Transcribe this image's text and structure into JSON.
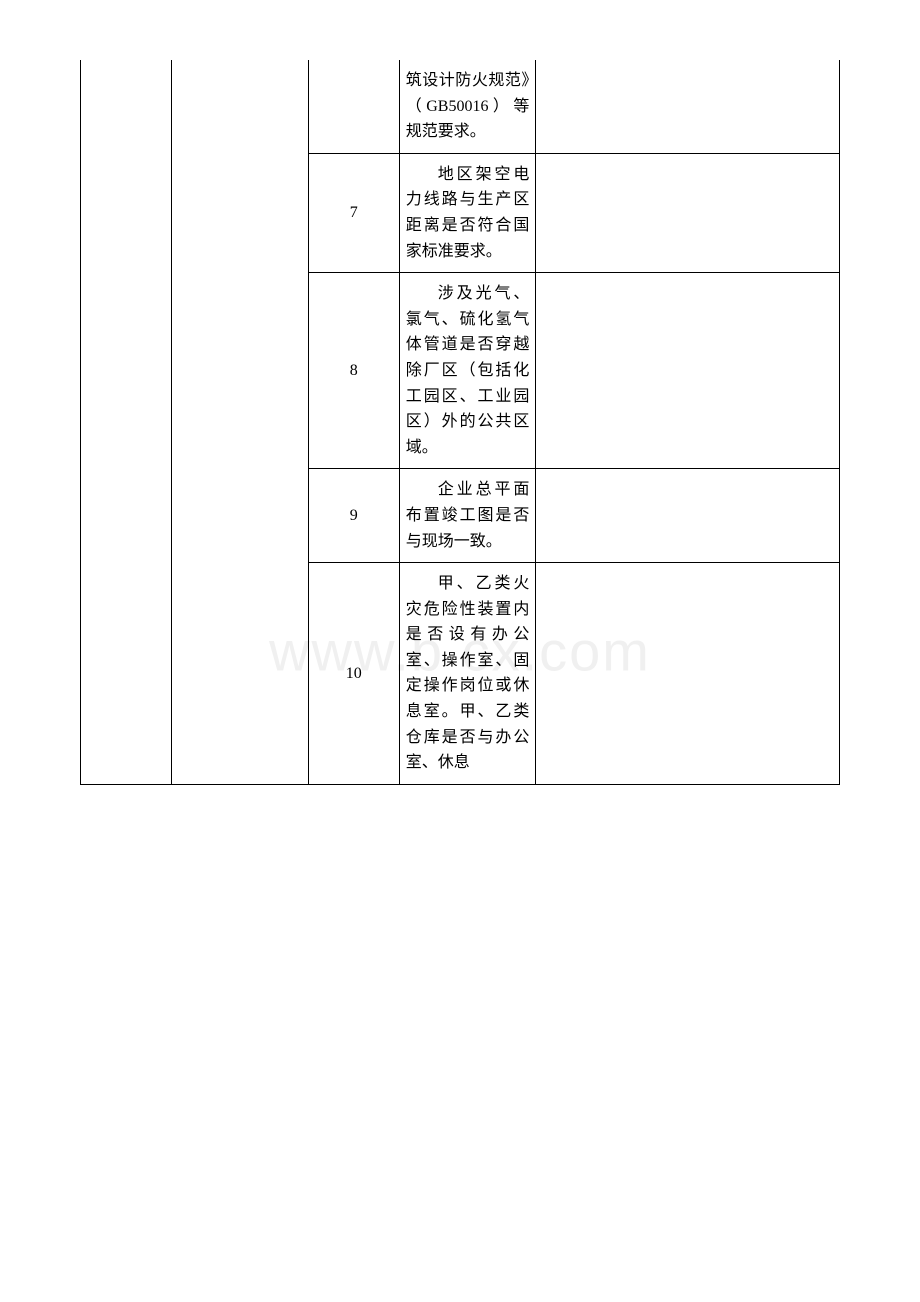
{
  "watermark": "www.b   cx.com",
  "rows": [
    {
      "num": "",
      "content": "筑设计防火规范》（GB50016）等规范要求。",
      "noIndent": true,
      "noTopBorder": true
    },
    {
      "num": "7",
      "content": "地区架空电力线路与生产区距离是否符合国家标准要求。"
    },
    {
      "num": "8",
      "content": "涉及光气、氯气、硫化氢气体管道是否穿越除厂区（包括化工园区、工业园区）外的公共区域。"
    },
    {
      "num": "9",
      "content": "企业总平面布置竣工图是否与现场一致。"
    },
    {
      "num": "10",
      "content": "甲、乙类火灾危险性装置内是否设有办公室、操作室、固定操作岗位或休息室。甲、乙类仓库是否与办公室、休息"
    }
  ]
}
